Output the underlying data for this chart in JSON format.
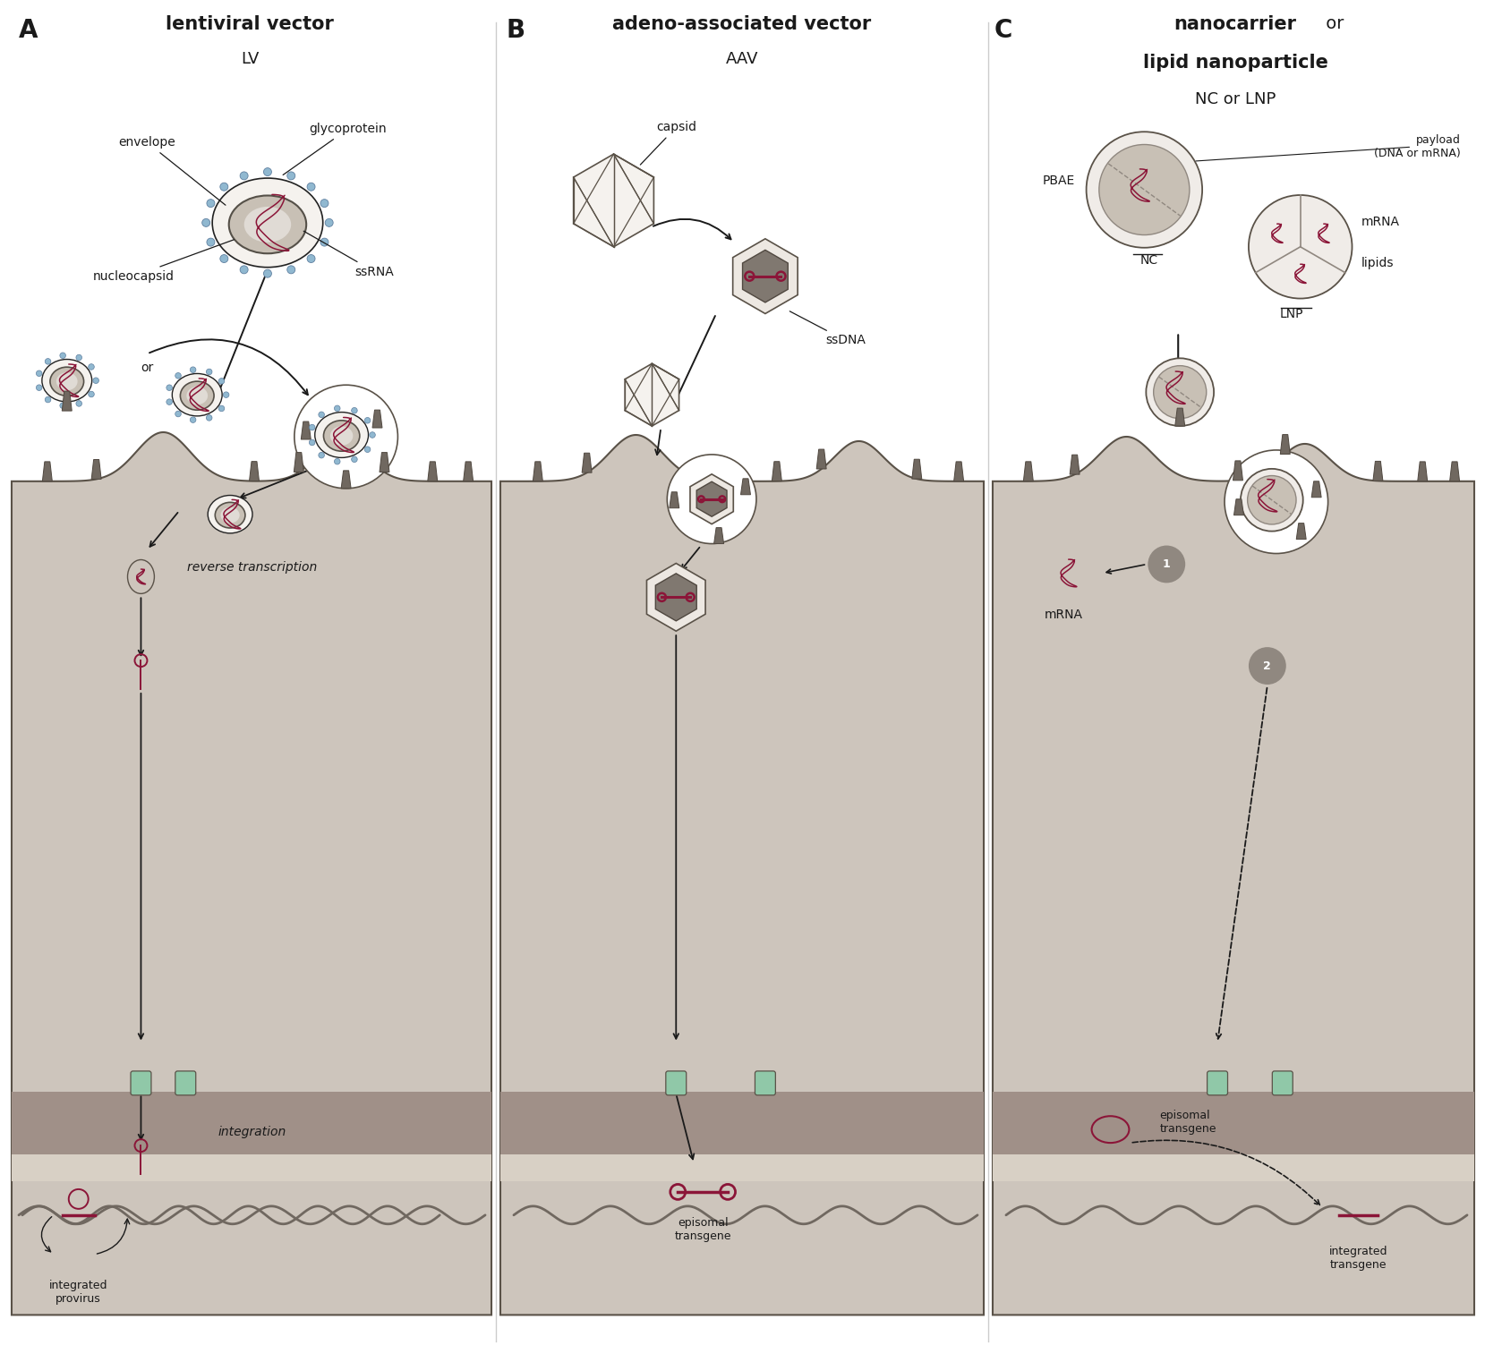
{
  "panel_A_title": "lentiviral vector",
  "panel_A_subtitle": "LV",
  "panel_B_title": "adeno-associated vector",
  "panel_B_subtitle": "AAV",
  "panel_C_title1": "nanocarrier",
  "panel_C_title2": " or",
  "panel_C_title3": "lipid nanoparticle",
  "panel_C_subtitle": "NC or LNP",
  "bg_color": "#ffffff",
  "cell_fill": "#cdc5bc",
  "cell_dark_fill": "#a09088",
  "nucleus_fill": "#e8e2dc",
  "outer_shell": "#e0dbd5",
  "inner_shell": "#c8c0b5",
  "dark_gray": "#5a5248",
  "medium_gray": "#908880",
  "light_gray": "#c0b8b0",
  "very_light_gray": "#f0ece8",
  "maroon": "#8b1538",
  "green_accent": "#90c8a8",
  "blue_dot": "#90b8d0",
  "text_color": "#1a1a1a",
  "divider_color": "#cccccc"
}
